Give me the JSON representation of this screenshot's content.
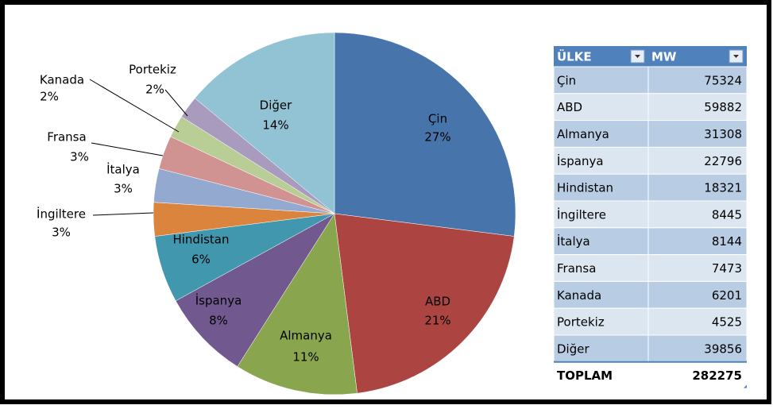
{
  "chart_data": {
    "type": "pie",
    "categories": [
      "Çin",
      "ABD",
      "Almanya",
      "İspanya",
      "Hindistan",
      "İngiltere",
      "İtalya",
      "Fransa",
      "Kanada",
      "Portekiz",
      "Diğer"
    ],
    "values": [
      27,
      21,
      11,
      8,
      6,
      3,
      3,
      3,
      2,
      2,
      14
    ],
    "value_labels": [
      "27%",
      "21%",
      "11%",
      "8%",
      "6%",
      "3%",
      "3%",
      "3%",
      "2%",
      "2%",
      "14%"
    ],
    "colors": [
      "#4774ab",
      "#ac4542",
      "#89a54e",
      "#71588f",
      "#4197ae",
      "#db843d",
      "#93a9cf",
      "#d19392",
      "#b9cd96",
      "#a99bbd",
      "#92c3d5"
    ]
  },
  "table": {
    "headers": [
      "ÜLKE",
      "MW"
    ],
    "rows": [
      [
        "Çin",
        75324
      ],
      [
        "ABD",
        59882
      ],
      [
        "Almanya",
        31308
      ],
      [
        "İspanya",
        22796
      ],
      [
        "Hindistan",
        18321
      ],
      [
        "İngiltere",
        8445
      ],
      [
        "İtalya",
        8144
      ],
      [
        "Fransa",
        7473
      ],
      [
        "Kanada",
        6201
      ],
      [
        "Portekiz",
        4525
      ],
      [
        "Diğer",
        39856
      ]
    ],
    "total": [
      "TOPLAM",
      282275
    ]
  }
}
